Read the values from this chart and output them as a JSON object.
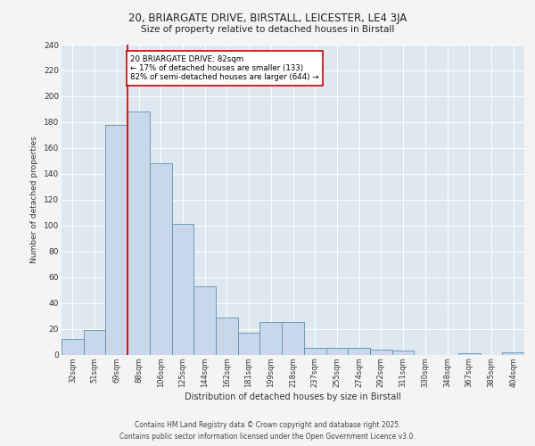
{
  "title1": "20, BRIARGATE DRIVE, BIRSTALL, LEICESTER, LE4 3JA",
  "title2": "Size of property relative to detached houses in Birstall",
  "xlabel": "Distribution of detached houses by size in Birstall",
  "ylabel": "Number of detached properties",
  "categories": [
    "32sqm",
    "51sqm",
    "69sqm",
    "88sqm",
    "106sqm",
    "125sqm",
    "144sqm",
    "162sqm",
    "181sqm",
    "199sqm",
    "218sqm",
    "237sqm",
    "255sqm",
    "274sqm",
    "292sqm",
    "311sqm",
    "330sqm",
    "348sqm",
    "367sqm",
    "385sqm",
    "404sqm"
  ],
  "values": [
    12,
    19,
    178,
    188,
    148,
    101,
    53,
    29,
    17,
    25,
    25,
    5,
    5,
    5,
    4,
    3,
    0,
    0,
    1,
    0,
    2
  ],
  "bar_color": "#c8d8ea",
  "bar_edge_color": "#6090b0",
  "vline_x": 2.5,
  "vline_color": "#cc0000",
  "annotation_text": "20 BRIARGATE DRIVE: 82sqm\n← 17% of detached houses are smaller (133)\n82% of semi-detached houses are larger (644) →",
  "annotation_box_color": "#ffffff",
  "annotation_box_edge": "#cc0000",
  "ylim": [
    0,
    240
  ],
  "yticks": [
    0,
    20,
    40,
    60,
    80,
    100,
    120,
    140,
    160,
    180,
    200,
    220,
    240
  ],
  "background_color": "#dde8f0",
  "fig_background": "#f4f4f4",
  "footer1": "Contains HM Land Registry data © Crown copyright and database right 2025.",
  "footer2": "Contains public sector information licensed under the Open Government Licence v3.0."
}
